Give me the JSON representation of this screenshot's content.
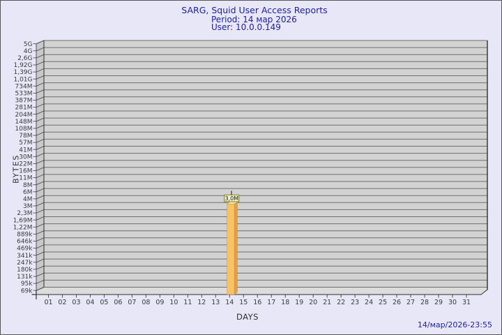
{
  "title": {
    "line1": "SARG, Squid User Access Reports",
    "line2": "Period: 14 мар 2026",
    "line3": "User: 10.0.0.149"
  },
  "footer": {
    "generated": "14/мар/2026-23:55"
  },
  "colors": {
    "background": "#e7e7f7",
    "title_text": "#20209a",
    "plot_band": "#d2d2d2",
    "plot_wall": "#c9c9c9",
    "plot_floor": "#dcdcdc",
    "gridline": "#6f6f6f",
    "plot_edge": "#2f2f2f",
    "tick_text": "#3a3a3a",
    "bar_face": "#fdc162",
    "bar_side": "#dca050",
    "bar_top": "#f6e2a0",
    "bar_edge": "#b8903c",
    "annotation_bg": "#f4f4c6",
    "annotation_border": "#7e7e2e",
    "annotation_text": "#111111"
  },
  "chart_data": {
    "type": "bar",
    "title": "SARG, Squid User Access Reports",
    "subtitle": "Period: 14 мар 2026",
    "user": "User: 10.0.0.149",
    "xlabel": "DAYS",
    "ylabel": "BYTES",
    "grid": "horizontal",
    "legend": "none",
    "y_axis": {
      "scale": "log",
      "min_bytes": 69000,
      "max_bytes": 5000000000,
      "tick_labels": [
        "5G",
        "4G",
        "2,6G",
        "1,92G",
        "1,39G",
        "1,01G",
        "734M",
        "533M",
        "387M",
        "281M",
        "204M",
        "148M",
        "108M",
        "78M",
        "57M",
        "41M",
        "30M",
        "22M",
        "16M",
        "11M",
        "8M",
        "6M",
        "4M",
        "3M",
        "2,3M",
        "1,69M",
        "1,22M",
        "889k",
        "646k",
        "469k",
        "341k",
        "247k",
        "180k",
        "131k",
        "95k",
        "69k"
      ]
    },
    "categories": [
      "01",
      "02",
      "03",
      "04",
      "05",
      "06",
      "07",
      "08",
      "09",
      "10",
      "11",
      "12",
      "13",
      "14",
      "15",
      "16",
      "17",
      "18",
      "19",
      "20",
      "21",
      "22",
      "23",
      "24",
      "25",
      "26",
      "27",
      "28",
      "29",
      "30",
      "31"
    ],
    "bars": [
      {
        "category": "14",
        "value_label": "3,0M",
        "value_bytes": 3000000
      }
    ]
  }
}
